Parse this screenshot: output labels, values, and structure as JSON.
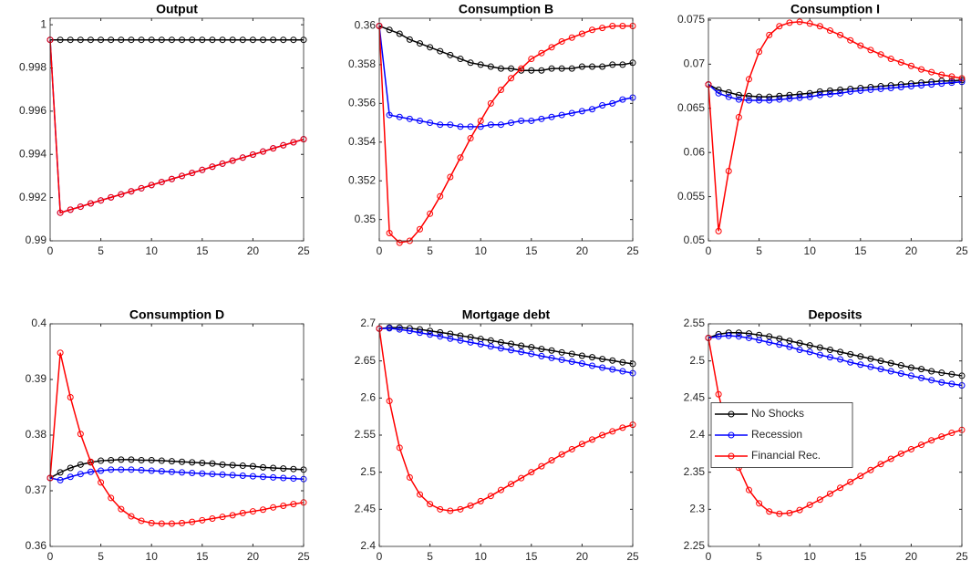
{
  "chart_data": [
    {
      "type": "line",
      "title": "Output",
      "x": [
        0,
        1,
        2,
        3,
        4,
        5,
        6,
        7,
        8,
        9,
        10,
        11,
        12,
        13,
        14,
        15,
        16,
        17,
        18,
        19,
        20,
        21,
        22,
        23,
        24,
        25
      ],
      "xlim": [
        0,
        25
      ],
      "xticks": [
        0,
        5,
        10,
        15,
        20,
        25
      ],
      "ylim": [
        0.99,
        1.0003
      ],
      "yticks": [
        0.99,
        0.992,
        0.994,
        0.996,
        0.998,
        1
      ],
      "series": [
        {
          "color": "#000000",
          "values": [
            0.9993,
            0.9993,
            0.9993,
            0.9993,
            0.9993,
            0.9993,
            0.9993,
            0.9993,
            0.9993,
            0.9993,
            0.9993,
            0.9993,
            0.9993,
            0.9993,
            0.9993,
            0.9993,
            0.9993,
            0.9993,
            0.9993,
            0.9993,
            0.9993,
            0.9993,
            0.9993,
            0.9993,
            0.9993,
            0.9993
          ]
        },
        {
          "color": "#0000ff",
          "values": [
            0.9993,
            0.9913,
            0.99144,
            0.99158,
            0.99173,
            0.99187,
            0.99201,
            0.99215,
            0.99229,
            0.99243,
            0.99258,
            0.99272,
            0.99286,
            0.993,
            0.99314,
            0.99328,
            0.99343,
            0.99357,
            0.99371,
            0.99385,
            0.99399,
            0.99413,
            0.99428,
            0.99442,
            0.99456,
            0.9947
          ]
        },
        {
          "color": "#ff0000",
          "values": [
            0.9993,
            0.9913,
            0.99144,
            0.99158,
            0.99173,
            0.99187,
            0.99201,
            0.99215,
            0.99229,
            0.99243,
            0.99258,
            0.99272,
            0.99286,
            0.993,
            0.99314,
            0.99328,
            0.99343,
            0.99357,
            0.99371,
            0.99385,
            0.99399,
            0.99413,
            0.99428,
            0.99442,
            0.99456,
            0.9947
          ]
        }
      ]
    },
    {
      "type": "line",
      "title": "Consumption B",
      "x": [
        0,
        1,
        2,
        3,
        4,
        5,
        6,
        7,
        8,
        9,
        10,
        11,
        12,
        13,
        14,
        15,
        16,
        17,
        18,
        19,
        20,
        21,
        22,
        23,
        24,
        25
      ],
      "xlim": [
        0,
        25
      ],
      "xticks": [
        0,
        5,
        10,
        15,
        20,
        25
      ],
      "ylim": [
        0.3489,
        0.3604
      ],
      "yticks": [
        0.35,
        0.352,
        0.354,
        0.356,
        0.358,
        0.36
      ],
      "series": [
        {
          "color": "#000000",
          "values": [
            0.36,
            0.3598,
            0.3596,
            0.3593,
            0.3591,
            0.3589,
            0.3587,
            0.3585,
            0.3583,
            0.3581,
            0.358,
            0.3579,
            0.3578,
            0.3578,
            0.3577,
            0.3577,
            0.3577,
            0.3578,
            0.3578,
            0.3578,
            0.3579,
            0.3579,
            0.3579,
            0.358,
            0.358,
            0.3581
          ]
        },
        {
          "color": "#0000ff",
          "values": [
            0.36,
            0.3554,
            0.3553,
            0.3552,
            0.3551,
            0.355,
            0.3549,
            0.3549,
            0.3548,
            0.3548,
            0.3548,
            0.3549,
            0.3549,
            0.355,
            0.3551,
            0.3551,
            0.3552,
            0.3553,
            0.3554,
            0.3555,
            0.3556,
            0.3557,
            0.3559,
            0.356,
            0.3562,
            0.3563
          ]
        },
        {
          "color": "#ff0000",
          "values": [
            0.36,
            0.3493,
            0.3488,
            0.3489,
            0.3495,
            0.3503,
            0.3512,
            0.3522,
            0.3532,
            0.3542,
            0.3551,
            0.356,
            0.3567,
            0.3573,
            0.3578,
            0.3583,
            0.3586,
            0.3589,
            0.3592,
            0.3594,
            0.3596,
            0.3598,
            0.3599,
            0.36,
            0.36,
            0.36
          ]
        }
      ]
    },
    {
      "type": "line",
      "title": "Consumption I",
      "x": [
        0,
        1,
        2,
        3,
        4,
        5,
        6,
        7,
        8,
        9,
        10,
        11,
        12,
        13,
        14,
        15,
        16,
        17,
        18,
        19,
        20,
        21,
        22,
        23,
        24,
        25
      ],
      "xlim": [
        0,
        25
      ],
      "xticks": [
        0,
        5,
        10,
        15,
        20,
        25
      ],
      "ylim": [
        0.05,
        0.0752
      ],
      "yticks": [
        0.05,
        0.055,
        0.06,
        0.065,
        0.07,
        0.075
      ],
      "series": [
        {
          "color": "#000000",
          "values": [
            0.0677,
            0.0671,
            0.0668,
            0.0665,
            0.0664,
            0.0663,
            0.0663,
            0.0664,
            0.0665,
            0.0666,
            0.0667,
            0.0669,
            0.067,
            0.0671,
            0.0672,
            0.0673,
            0.0674,
            0.0675,
            0.0676,
            0.0677,
            0.0678,
            0.0679,
            0.068,
            0.0681,
            0.0681,
            0.0682
          ]
        },
        {
          "color": "#0000ff",
          "values": [
            0.0677,
            0.0667,
            0.0663,
            0.066,
            0.0659,
            0.0659,
            0.0659,
            0.066,
            0.0661,
            0.0662,
            0.0663,
            0.0665,
            0.0666,
            0.0667,
            0.0669,
            0.067,
            0.0671,
            0.0672,
            0.0673,
            0.0674,
            0.0675,
            0.0676,
            0.0677,
            0.0678,
            0.0679,
            0.068
          ]
        },
        {
          "color": "#ff0000",
          "values": [
            0.0677,
            0.0511,
            0.0579,
            0.064,
            0.0683,
            0.0714,
            0.0733,
            0.0743,
            0.0747,
            0.0748,
            0.0746,
            0.0743,
            0.0738,
            0.0733,
            0.0727,
            0.0721,
            0.0716,
            0.0711,
            0.0706,
            0.0702,
            0.0698,
            0.0694,
            0.0691,
            0.0688,
            0.0686,
            0.0684
          ]
        }
      ]
    },
    {
      "type": "line",
      "title": "Consumption D",
      "x": [
        0,
        1,
        2,
        3,
        4,
        5,
        6,
        7,
        8,
        9,
        10,
        11,
        12,
        13,
        14,
        15,
        16,
        17,
        18,
        19,
        20,
        21,
        22,
        23,
        24,
        25
      ],
      "xlim": [
        0,
        25
      ],
      "xticks": [
        0,
        5,
        10,
        15,
        20,
        25
      ],
      "ylim": [
        0.36,
        0.4
      ],
      "yticks": [
        0.36,
        0.37,
        0.38,
        0.39,
        0.4
      ],
      "series": [
        {
          "color": "#000000",
          "values": [
            0.3723,
            0.3733,
            0.3741,
            0.3747,
            0.3751,
            0.3754,
            0.3755,
            0.3756,
            0.3756,
            0.3755,
            0.3755,
            0.3754,
            0.3753,
            0.3752,
            0.3751,
            0.375,
            0.3749,
            0.3747,
            0.3746,
            0.3745,
            0.3744,
            0.3742,
            0.3741,
            0.374,
            0.3739,
            0.3738
          ]
        },
        {
          "color": "#0000ff",
          "values": [
            0.3723,
            0.3719,
            0.3725,
            0.373,
            0.3734,
            0.3736,
            0.3738,
            0.3738,
            0.3738,
            0.3737,
            0.3736,
            0.3735,
            0.3734,
            0.3733,
            0.3732,
            0.3731,
            0.373,
            0.3729,
            0.3728,
            0.3727,
            0.3726,
            0.3725,
            0.3724,
            0.3723,
            0.3722,
            0.3721
          ]
        },
        {
          "color": "#ff0000",
          "values": [
            0.3723,
            0.3948,
            0.3868,
            0.3802,
            0.3752,
            0.3715,
            0.3687,
            0.3667,
            0.3654,
            0.3646,
            0.3642,
            0.3641,
            0.3641,
            0.3642,
            0.3644,
            0.3647,
            0.365,
            0.3653,
            0.3656,
            0.366,
            0.3663,
            0.3666,
            0.367,
            0.3673,
            0.3676,
            0.3679
          ]
        }
      ]
    },
    {
      "type": "line",
      "title": "Mortgage debt",
      "x": [
        0,
        1,
        2,
        3,
        4,
        5,
        6,
        7,
        8,
        9,
        10,
        11,
        12,
        13,
        14,
        15,
        16,
        17,
        18,
        19,
        20,
        21,
        22,
        23,
        24,
        25
      ],
      "xlim": [
        0,
        25
      ],
      "xticks": [
        0,
        5,
        10,
        15,
        20,
        25
      ],
      "ylim": [
        2.4,
        2.7
      ],
      "yticks": [
        2.4,
        2.45,
        2.5,
        2.55,
        2.6,
        2.65,
        2.7
      ],
      "series": [
        {
          "color": "#000000",
          "values": [
            2.6935,
            2.695,
            2.695,
            2.694,
            2.6925,
            2.6905,
            2.6885,
            2.6865,
            2.684,
            2.682,
            2.6795,
            2.6775,
            2.675,
            2.673,
            2.6705,
            2.6685,
            2.666,
            2.664,
            2.6615,
            2.6595,
            2.657,
            2.655,
            2.6525,
            2.6505,
            2.648,
            2.646
          ]
        },
        {
          "color": "#0000ff",
          "values": [
            2.6935,
            2.694,
            2.6925,
            2.6905,
            2.688,
            2.6855,
            2.683,
            2.68,
            2.6775,
            2.675,
            2.6725,
            2.6695,
            2.667,
            2.6645,
            2.662,
            2.6595,
            2.6565,
            2.654,
            2.6515,
            2.649,
            2.6465,
            2.6435,
            2.641,
            2.6385,
            2.636,
            2.6335
          ]
        },
        {
          "color": "#ff0000",
          "values": [
            2.6935,
            2.596,
            2.533,
            2.493,
            2.47,
            2.457,
            2.45,
            2.448,
            2.45,
            2.455,
            2.461,
            2.468,
            2.476,
            2.484,
            2.492,
            2.5,
            2.508,
            2.516,
            2.524,
            2.531,
            2.538,
            2.544,
            2.55,
            2.555,
            2.56,
            2.564
          ]
        }
      ]
    },
    {
      "type": "line",
      "title": "Deposits",
      "x": [
        0,
        1,
        2,
        3,
        4,
        5,
        6,
        7,
        8,
        9,
        10,
        11,
        12,
        13,
        14,
        15,
        16,
        17,
        18,
        19,
        20,
        21,
        22,
        23,
        24,
        25
      ],
      "xlim": [
        0,
        25
      ],
      "xticks": [
        0,
        5,
        10,
        15,
        20,
        25
      ],
      "ylim": [
        2.25,
        2.55
      ],
      "yticks": [
        2.25,
        2.3,
        2.35,
        2.4,
        2.45,
        2.5,
        2.55
      ],
      "legend_loc": "west",
      "series": [
        {
          "name": "No Shocks",
          "color": "#000000",
          "values": [
            2.531,
            2.536,
            2.538,
            2.538,
            2.537,
            2.535,
            2.533,
            2.53,
            2.527,
            2.524,
            2.521,
            2.518,
            2.515,
            2.512,
            2.509,
            2.506,
            2.503,
            2.5,
            2.497,
            2.494,
            2.491,
            2.489,
            2.486,
            2.484,
            2.482,
            2.48
          ]
        },
        {
          "name": "Recession",
          "color": "#0000ff",
          "values": [
            2.531,
            2.533,
            2.534,
            2.533,
            2.531,
            2.528,
            2.525,
            2.522,
            2.519,
            2.515,
            2.512,
            2.508,
            2.505,
            2.502,
            2.498,
            2.495,
            2.492,
            2.489,
            2.486,
            2.483,
            2.48,
            2.477,
            2.474,
            2.471,
            2.469,
            2.467
          ]
        },
        {
          "name": "Financial Rec.",
          "color": "#ff0000",
          "values": [
            2.531,
            2.455,
            2.4,
            2.356,
            2.326,
            2.308,
            2.297,
            2.294,
            2.295,
            2.299,
            2.306,
            2.313,
            2.321,
            2.329,
            2.337,
            2.345,
            2.353,
            2.361,
            2.368,
            2.375,
            2.381,
            2.387,
            2.393,
            2.398,
            2.403,
            2.407
          ]
        }
      ]
    }
  ]
}
